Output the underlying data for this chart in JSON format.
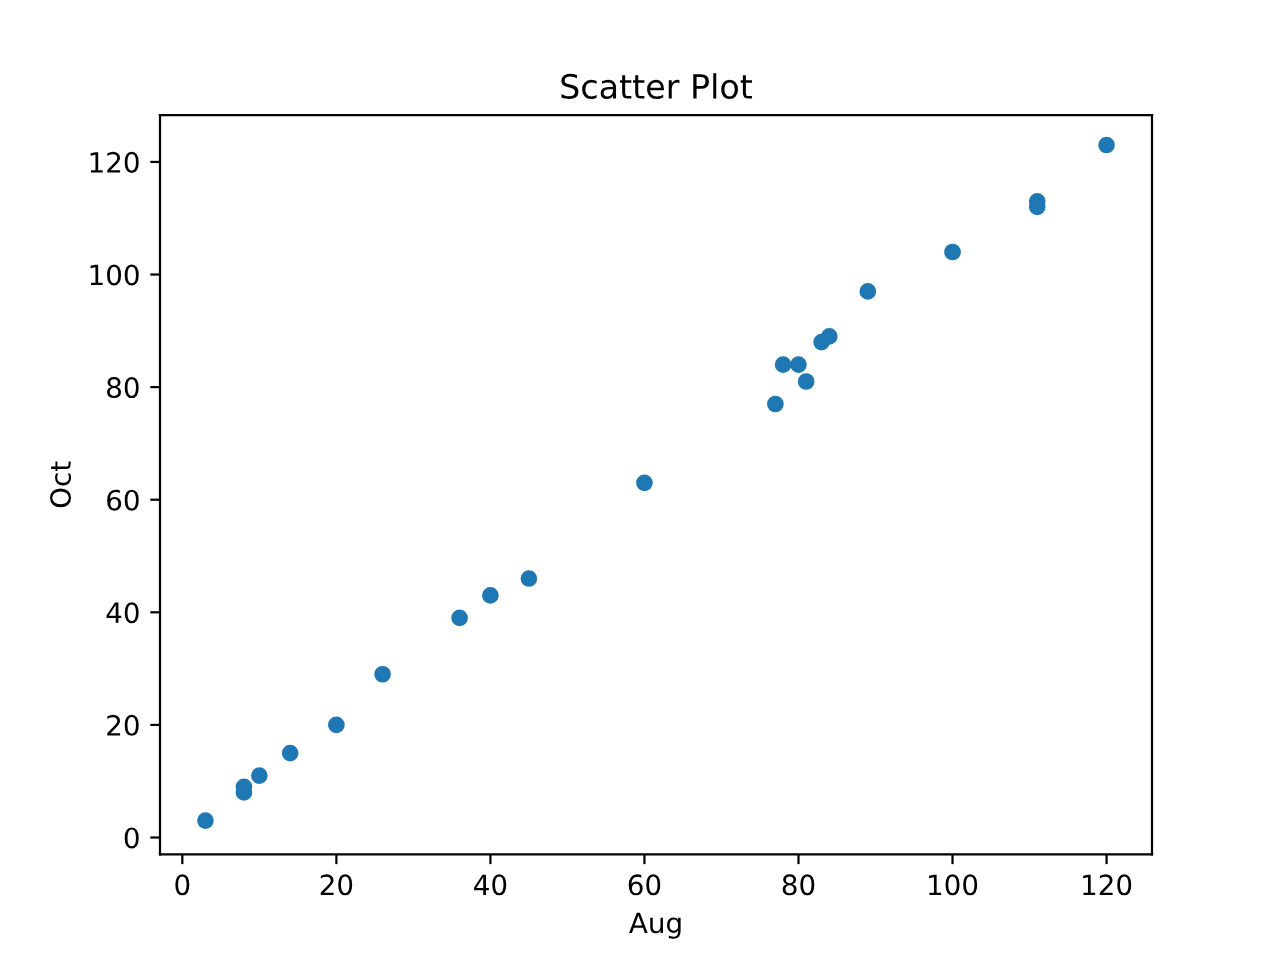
{
  "chart_data": {
    "type": "scatter",
    "title": "Scatter Plot",
    "xlabel": "Aug",
    "ylabel": "Oct",
    "x": [
      3,
      8,
      8,
      10,
      14,
      20,
      26,
      36,
      40,
      45,
      60,
      77,
      78,
      80,
      81,
      83,
      84,
      89,
      100,
      111,
      111,
      120
    ],
    "series": [
      {
        "color": "#1f77b4",
        "values": [
          3,
          8,
          9,
          11,
          15,
          20,
          29,
          39,
          43,
          46,
          63,
          77,
          84,
          84,
          81,
          88,
          89,
          97,
          104,
          113,
          112,
          123
        ]
      }
    ],
    "xlim": [
      -2.9,
      125.9
    ],
    "ylim": [
      -3.0,
      128.3
    ],
    "xticks": [
      0,
      20,
      40,
      60,
      80,
      100,
      120
    ],
    "yticks": [
      0,
      20,
      40,
      60,
      80,
      100,
      120
    ],
    "marker": "circle",
    "grid": false,
    "legend": false
  }
}
